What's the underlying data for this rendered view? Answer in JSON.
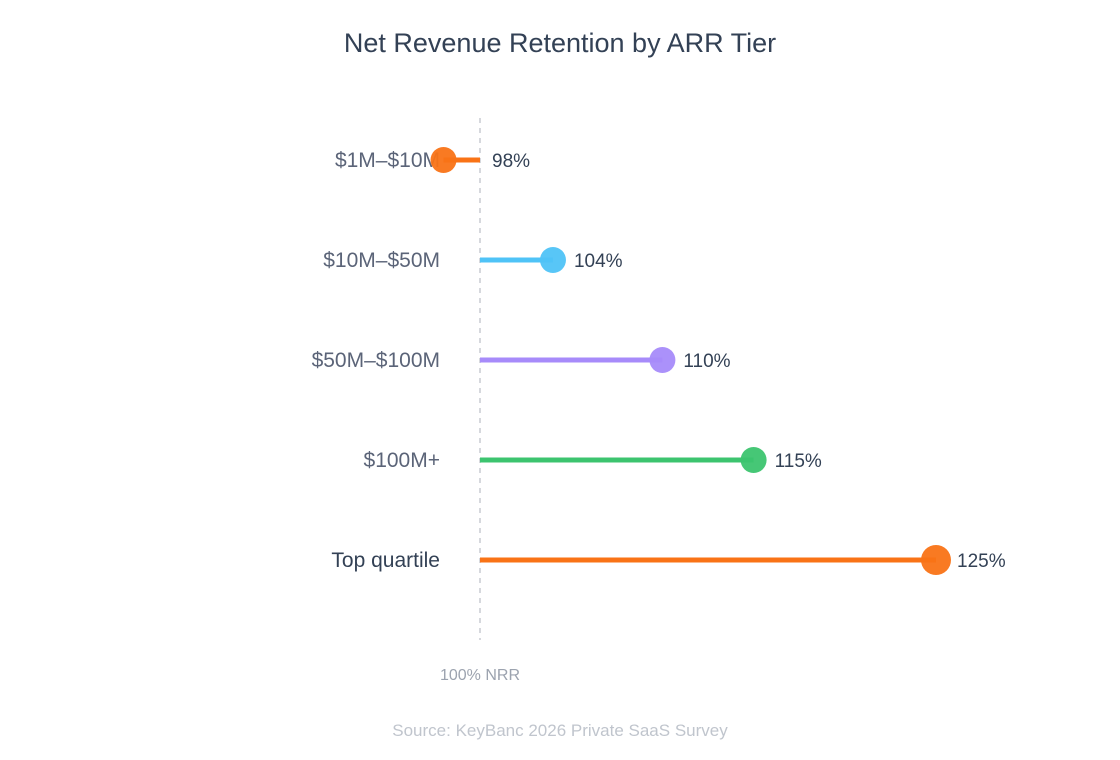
{
  "chart_data": {
    "type": "lollipop",
    "title": "Net Revenue Retention by ARR Tier",
    "baseline": 100,
    "baseline_label": "100% NRR",
    "source": "Source: KeyBanc 2026 Private SaaS Survey",
    "xlim": [
      100,
      125
    ],
    "categories": [
      "$1M–$10M",
      "$10M–$50M",
      "$50M–$100M",
      "$100M+",
      "Top quartile"
    ],
    "values": [
      98,
      104,
      110,
      115,
      125
    ],
    "value_labels": [
      "98%",
      "104%",
      "110%",
      "115%",
      "125%"
    ],
    "colors": [
      "#f97316",
      "#4fc3f7",
      "#a78bfa",
      "#3cc46f",
      "#f97316"
    ],
    "highlight": "Top quartile"
  }
}
